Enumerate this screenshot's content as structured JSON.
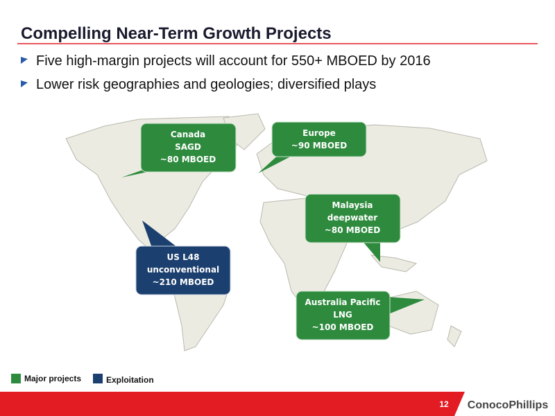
{
  "title": "Compelling Near-Term Growth Projects",
  "bullets": [
    "Five high-margin projects will account for 550+ MBOED by 2016",
    "Lower risk geographies and geologies; diversified plays"
  ],
  "callouts": [
    {
      "lines": [
        "Canada",
        "SAGD",
        "~80 MBOED"
      ]
    },
    {
      "lines": [
        "Europe",
        "~90 MBOED"
      ]
    },
    {
      "lines": [
        "Malaysia",
        "deepwater",
        "~80 MBOED"
      ]
    },
    {
      "lines": [
        "US L48",
        "unconventional",
        "~210 MBOED"
      ]
    },
    {
      "lines": [
        "Australia Pacific",
        "LNG",
        "~100 MBOED"
      ]
    }
  ],
  "legend": [
    "Major projects",
    "Exploitation"
  ],
  "footer": {
    "page": "12",
    "logo": "ConocoPhillips"
  }
}
